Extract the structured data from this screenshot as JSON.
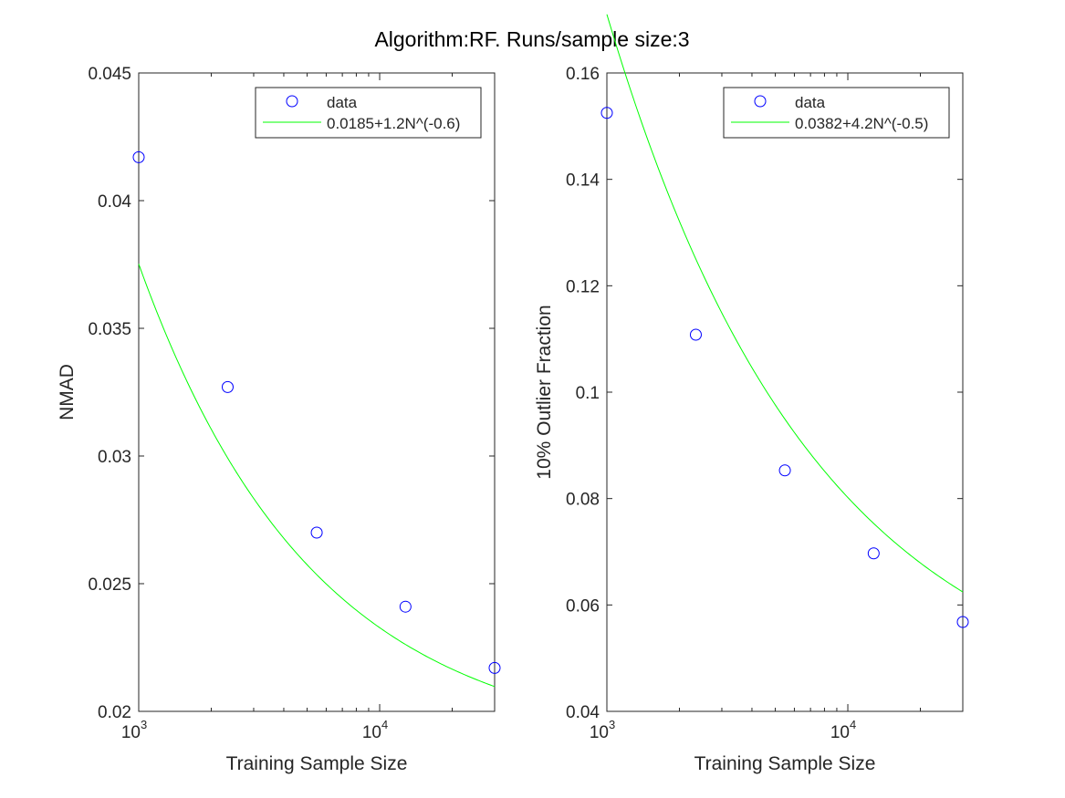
{
  "figure": {
    "title": "Algorithm:RF. Runs/sample size:3"
  },
  "chart_data": [
    {
      "type": "scatter",
      "xscale": "log",
      "xlim": [
        1000,
        30000
      ],
      "ylim": [
        0.02,
        0.045
      ],
      "grid": false,
      "legend_position": "top-right",
      "xlabel": "Training Sample Size",
      "ylabel": "NMAD",
      "ytick_labels": [
        "0.02",
        "0.025",
        "0.03",
        "0.035",
        "0.04",
        "0.045"
      ],
      "yticks": [
        0.02,
        0.025,
        0.03,
        0.035,
        0.04,
        0.045
      ],
      "xticks_major": [
        1000,
        10000
      ],
      "xtick_labels": [
        {
          "base": "10",
          "exp": "3"
        },
        {
          "base": "10",
          "exp": "4"
        }
      ],
      "series": [
        {
          "name": "data",
          "style": "markers",
          "color": "#0000ff",
          "x": [
            1000,
            2340,
            5480,
            12800,
            30000
          ],
          "y": [
            0.0417,
            0.0327,
            0.027,
            0.0241,
            0.0217
          ]
        },
        {
          "name": "0.0185+1.2N^(-0.6)",
          "style": "line",
          "color": "#00ff00",
          "fit": {
            "a": 0.0185,
            "b": 1.2,
            "p": -0.6
          }
        }
      ]
    },
    {
      "type": "scatter",
      "xscale": "log",
      "xlim": [
        1000,
        30000
      ],
      "ylim": [
        0.04,
        0.16
      ],
      "grid": false,
      "legend_position": "top-right",
      "xlabel": "Training Sample Size",
      "ylabel": "10% Outlier Fraction",
      "ytick_labels": [
        "0.04",
        "0.06",
        "0.08",
        "0.1",
        "0.12",
        "0.14",
        "0.16"
      ],
      "yticks": [
        0.04,
        0.06,
        0.08,
        0.1,
        0.12,
        0.14,
        0.16
      ],
      "xticks_major": [
        1000,
        10000
      ],
      "xtick_labels": [
        {
          "base": "10",
          "exp": "3"
        },
        {
          "base": "10",
          "exp": "4"
        }
      ],
      "series": [
        {
          "name": "data",
          "style": "markers",
          "color": "#0000ff",
          "x": [
            1000,
            2340,
            5480,
            12800,
            30000
          ],
          "y": [
            0.1525,
            0.1108,
            0.0853,
            0.0697,
            0.0568
          ]
        },
        {
          "name": "0.0382+4.2N^(-0.5)",
          "style": "line",
          "color": "#00ff00",
          "fit": {
            "a": 0.0382,
            "b": 4.2,
            "p": -0.5
          }
        }
      ]
    }
  ]
}
